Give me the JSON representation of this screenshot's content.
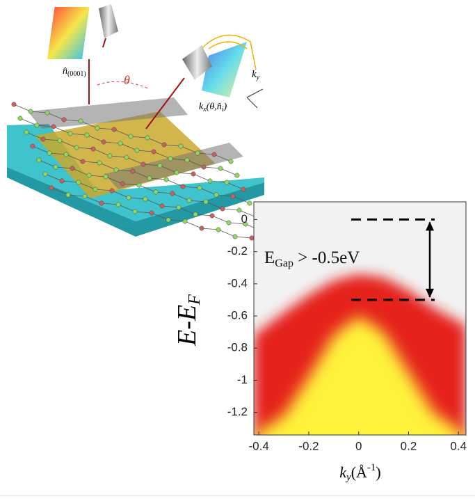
{
  "chart_data": {
    "type": "area",
    "x": [
      -0.42,
      -0.3,
      -0.2,
      -0.1,
      0,
      0.1,
      0.2,
      0.3,
      0.43
    ],
    "series": [
      {
        "color": "#e5231f",
        "values": [
          -0.72,
          -0.58,
          -0.47,
          -0.38,
          -0.34,
          -0.36,
          -0.44,
          -0.55,
          -0.66
        ]
      },
      {
        "color": "#fff23a",
        "values": [
          -1.34,
          -1.22,
          -0.98,
          -0.72,
          -0.6,
          -0.7,
          -0.95,
          -1.2,
          -1.34
        ]
      }
    ],
    "xlim": [
      -0.42,
      0.43
    ],
    "ylim": [
      -1.34,
      0.11
    ],
    "xticks": [
      -0.4,
      -0.2,
      0,
      0.2,
      0.4
    ],
    "yticks": [
      0,
      -0.2,
      -0.4,
      -0.6,
      -0.8,
      -1,
      -1.2
    ],
    "background": "#f2f2f2",
    "xlabel": {
      "main": "k",
      "sub": "y",
      "rest": "(Å",
      "sup": "-1",
      "end": ")"
    },
    "ylabel": {
      "main": "E-E",
      "sub": "F"
    },
    "annotation": {
      "main": "E",
      "sub": "Gap",
      "rest": " > -0.5eV",
      "levels": [
        0,
        -0.5
      ]
    }
  },
  "illustration": {
    "labels": {
      "normal": "n̂",
      "normal_sub": "(0001)",
      "theta": "θ",
      "ky": "k",
      "ky_sub": "y",
      "kx": "k",
      "kx_sub": "x",
      "kx_args": "(θ,n̂",
      "kx_args_sub": "i",
      "kx_close": ")"
    }
  }
}
